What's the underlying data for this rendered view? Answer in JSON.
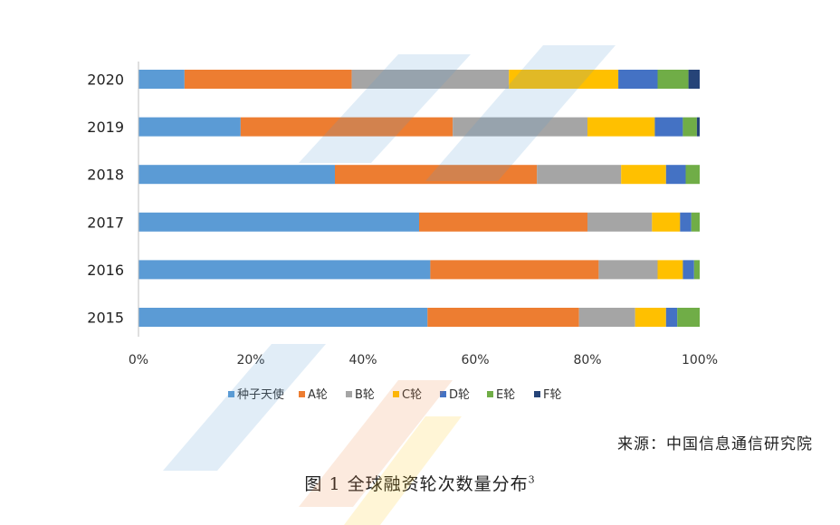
{
  "chart_data": {
    "type": "bar",
    "orientation": "horizontal",
    "stacked": "percent",
    "categories": [
      "2020",
      "2019",
      "2018",
      "2017",
      "2016",
      "2015"
    ],
    "series": [
      {
        "name": "种子天使",
        "color": "#5b9bd5",
        "values": [
          8.2,
          18.2,
          35.0,
          50.0,
          52.0,
          51.5
        ]
      },
      {
        "name": "A轮",
        "color": "#ed7d31",
        "values": [
          29.8,
          37.8,
          36.0,
          30.0,
          30.0,
          27.0
        ]
      },
      {
        "name": "B轮",
        "color": "#a5a5a5",
        "values": [
          28.0,
          24.0,
          15.0,
          11.5,
          10.5,
          10.0
        ]
      },
      {
        "name": "C轮",
        "color": "#ffc000",
        "values": [
          19.5,
          12.0,
          8.0,
          5.0,
          4.5,
          5.5
        ]
      },
      {
        "name": "D轮",
        "color": "#4472c4",
        "values": [
          7.0,
          5.0,
          3.5,
          2.0,
          2.0,
          2.0
        ]
      },
      {
        "name": "E轮",
        "color": "#70ad47",
        "values": [
          5.5,
          2.5,
          2.5,
          1.5,
          1.0,
          4.0
        ]
      },
      {
        "name": "F轮",
        "color": "#264478",
        "values": [
          2.0,
          0.5,
          0,
          0,
          0,
          0
        ]
      }
    ],
    "xticks": [
      "0%",
      "20%",
      "40%",
      "60%",
      "80%",
      "100%"
    ],
    "xlim": [
      0,
      100
    ],
    "grid": false,
    "legend_position": "bottom"
  },
  "source": "来源：中国信息通信研究院",
  "caption": {
    "text": "图 1 全球融资轮次数量分布",
    "superscript": "3"
  }
}
